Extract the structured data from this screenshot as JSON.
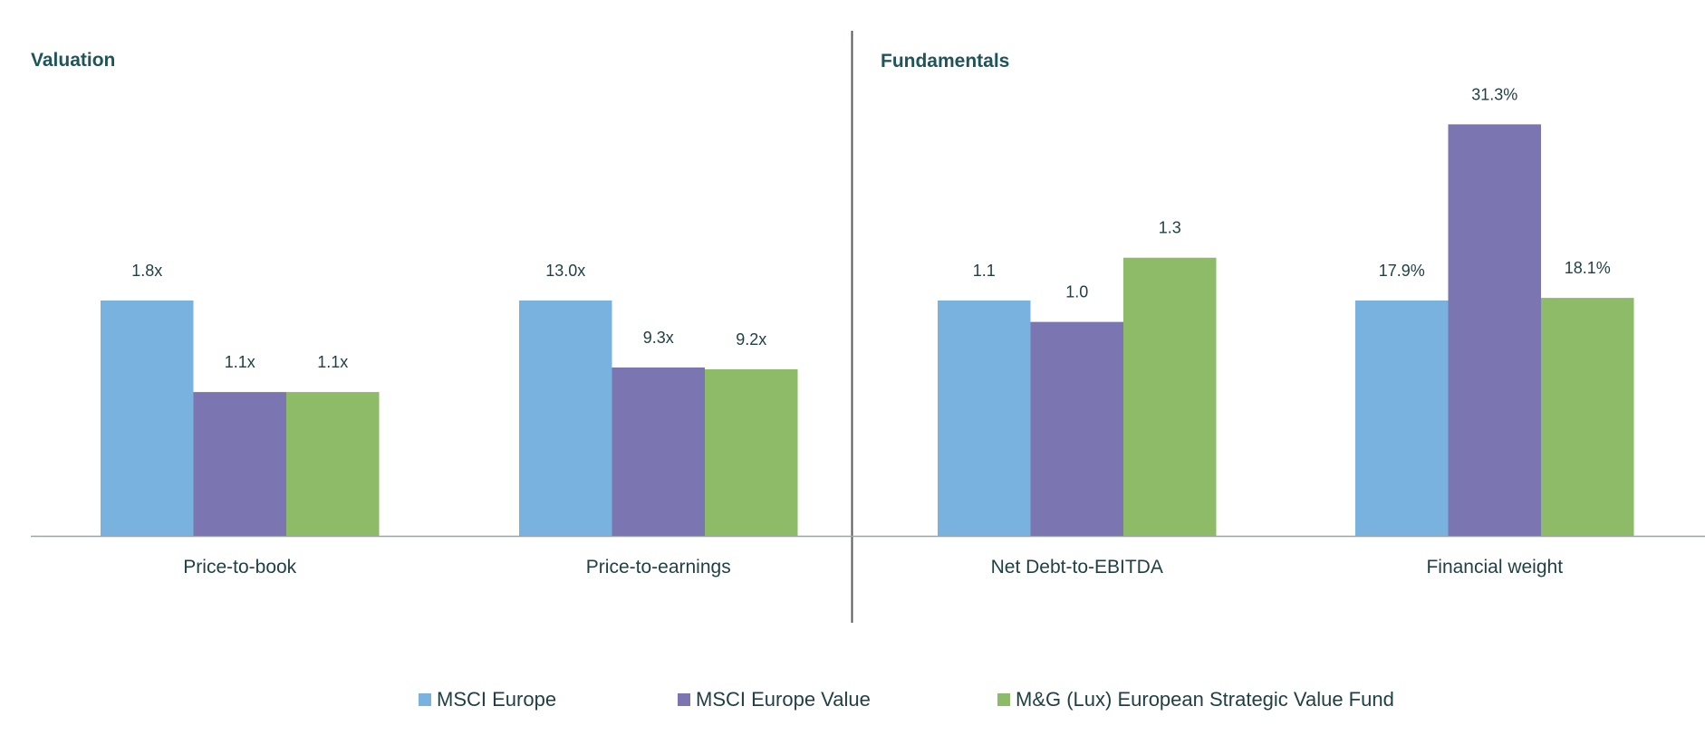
{
  "chart_data": {
    "type": "bar",
    "panels": [
      {
        "title": "Valuation",
        "categories": [
          "Price-to-book",
          "Price-to-earnings"
        ]
      },
      {
        "title": "Fundamentals",
        "categories": [
          "Net Debt-to-EBITDA",
          "Financial weight"
        ]
      }
    ],
    "categories": [
      "Price-to-book",
      "Price-to-earnings",
      "Net Debt-to-EBITDA",
      "Financial weight"
    ],
    "series": [
      {
        "name": "MSCI Europe",
        "color": "#79b1df",
        "values": [
          1.8,
          13.0,
          1.1,
          17.9
        ],
        "labels": [
          "1.8x",
          "13.0x",
          "1.1",
          "17.9%"
        ]
      },
      {
        "name": "MSCI Europe Value",
        "color": "#7b76b2",
        "values": [
          1.1,
          9.3,
          1.0,
          31.3
        ],
        "labels": [
          "1.1x",
          "9.3x",
          "1.0",
          "31.3%"
        ]
      },
      {
        "name": "M&G (Lux) European Strategic Value Fund",
        "color": "#8dbb68",
        "values": [
          1.1,
          9.2,
          1.3,
          18.1
        ],
        "labels": [
          "1.1x",
          "9.2x",
          "1.3",
          "18.1%"
        ]
      }
    ],
    "legend_position": "bottom-center",
    "ylabel": "",
    "xlabel": "",
    "grid": false
  }
}
